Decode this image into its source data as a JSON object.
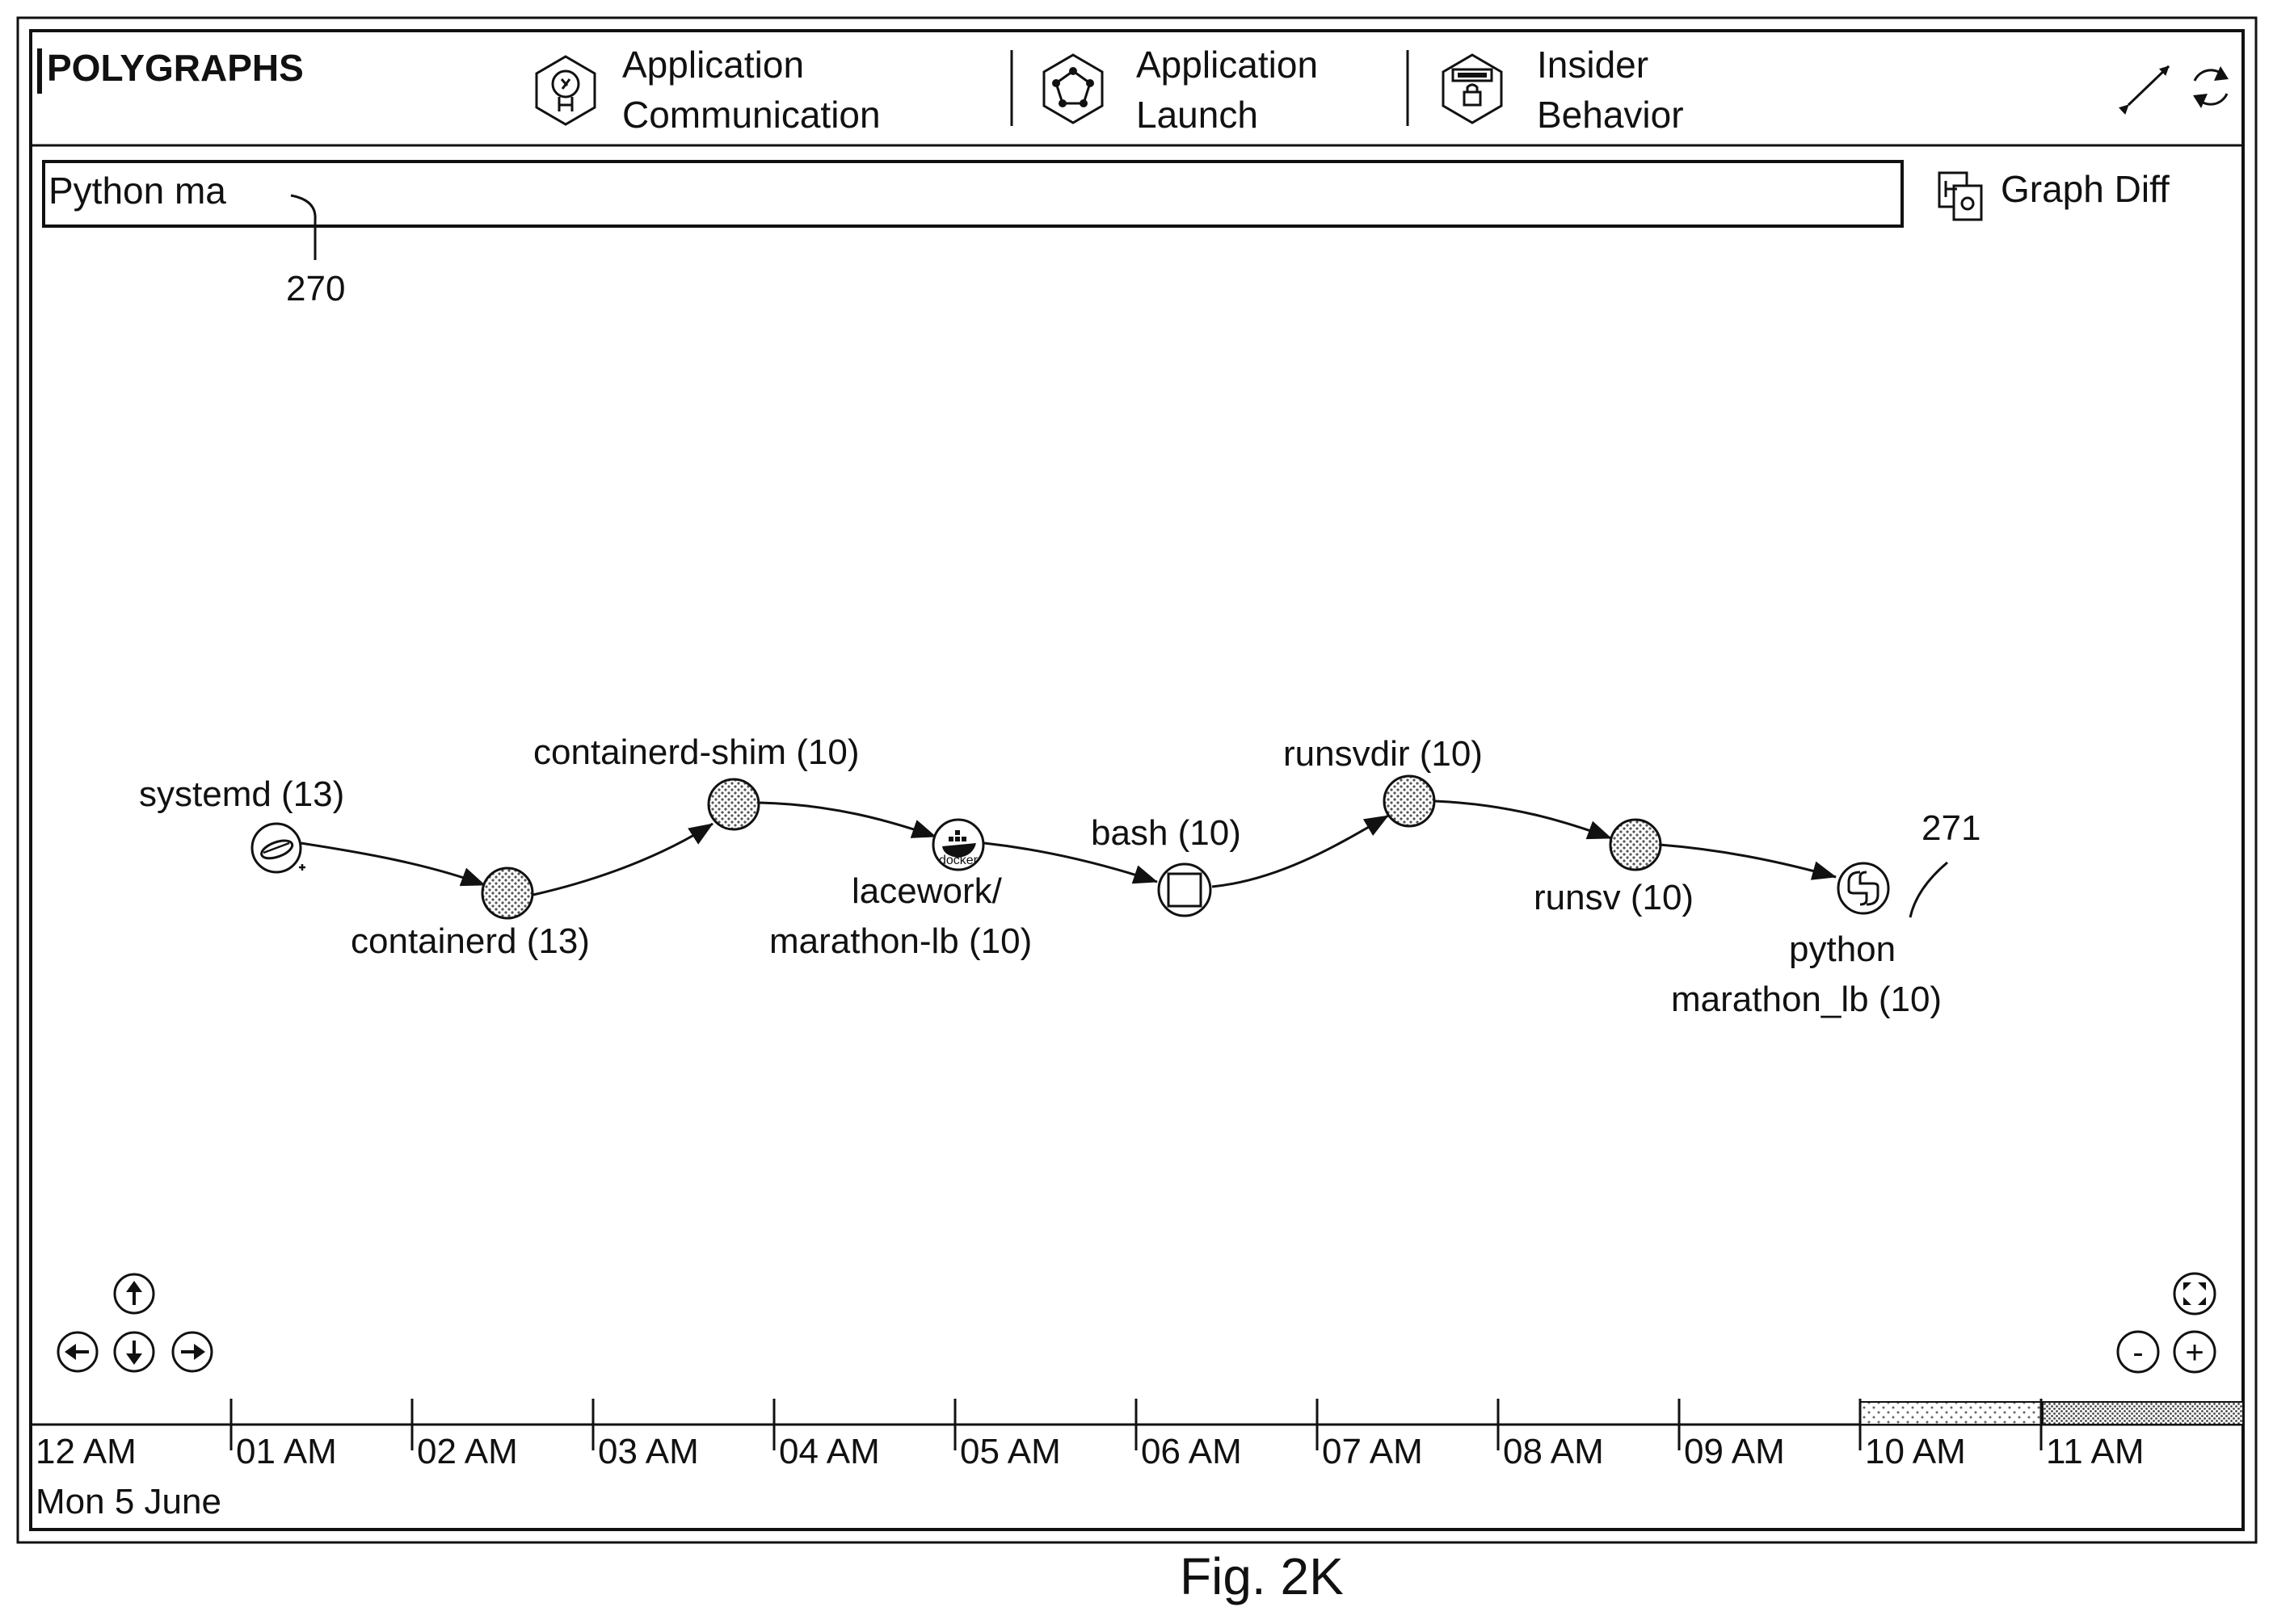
{
  "app": {
    "title": "POLYGRAPHS",
    "tabs": [
      {
        "line1": "Application",
        "line2": "Communication",
        "icon": "app-communication-icon"
      },
      {
        "line1": "Application",
        "line2": "Launch",
        "icon": "app-launch-icon"
      },
      {
        "line1": "Insider",
        "line2": "Behavior",
        "icon": "insider-behavior-icon"
      }
    ],
    "header_icons": [
      "expand-icon",
      "refresh-icon"
    ]
  },
  "search": {
    "value": "Python ma",
    "graph_diff_label": "Graph Diff",
    "ref_label": "270"
  },
  "graph": {
    "nodes": [
      {
        "id": "systemd",
        "label": "systemd (13)",
        "kind": "systemd"
      },
      {
        "id": "containerd",
        "label": "containerd (13)",
        "kind": "process"
      },
      {
        "id": "containerd-shim",
        "label": "containerd-shim (10)",
        "kind": "process"
      },
      {
        "id": "docker",
        "label_lines": [
          "lacework/",
          "marathon-lb (10)"
        ],
        "kind": "docker",
        "icon_text": "docker"
      },
      {
        "id": "bash",
        "label": "bash (10)",
        "kind": "square"
      },
      {
        "id": "runsvdir",
        "label": "runsvdir (10)",
        "kind": "process"
      },
      {
        "id": "runsv",
        "label": "runsv (10)",
        "kind": "process"
      },
      {
        "id": "python",
        "label_lines": [
          "python",
          "marathon_lb (10)"
        ],
        "kind": "python"
      }
    ],
    "edges": [
      [
        "systemd",
        "containerd"
      ],
      [
        "containerd",
        "containerd-shim"
      ],
      [
        "containerd-shim",
        "docker"
      ],
      [
        "docker",
        "bash"
      ],
      [
        "bash",
        "runsvdir"
      ],
      [
        "runsvdir",
        "runsv"
      ],
      [
        "runsv",
        "python"
      ]
    ],
    "ref_label": "271"
  },
  "navigation": {
    "icons": [
      "arrow-up-icon",
      "arrow-left-icon",
      "arrow-down-icon",
      "arrow-right-icon",
      "fit-screen-icon",
      "zoom-out-icon",
      "zoom-in-icon"
    ],
    "zoom_out_glyph": "-",
    "zoom_in_glyph": "+"
  },
  "timeline": {
    "date": "Mon 5 June",
    "ticks": [
      "12 AM",
      "01 AM",
      "02 AM",
      "03 AM",
      "04 AM",
      "05 AM",
      "06 AM",
      "07 AM",
      "08 AM",
      "09 AM",
      "10 AM",
      "11 AM"
    ],
    "selected_range": [
      "10 AM",
      "11 AM"
    ]
  },
  "figure_caption": "Fig. 2K"
}
